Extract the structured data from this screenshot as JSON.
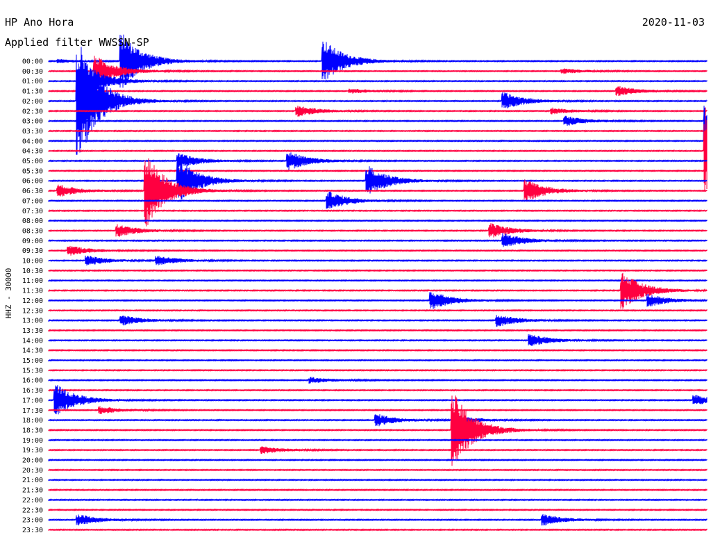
{
  "header": {
    "station_title": "HP Ano Hora",
    "filter_label": "Applied filter WWSSN-SP",
    "date": "2020-11-03"
  },
  "axis": {
    "ylabel": "HHZ - 30000"
  },
  "colors": {
    "trace_a": "#0000ff",
    "trace_b": "#ff0040",
    "background": "#ffffff",
    "text": "#000000"
  },
  "chart_data": {
    "type": "helicorder",
    "title": "HP Ano Hora",
    "subtitle": "Applied filter WWSSN-SP",
    "date": "2020-11-03",
    "ylabel": "HHZ - 30000",
    "row_interval_minutes": 30,
    "row_labels": [
      "00:00",
      "00:30",
      "01:00",
      "01:30",
      "02:00",
      "02:30",
      "03:00",
      "03:30",
      "04:00",
      "04:30",
      "05:00",
      "05:30",
      "06:00",
      "06:30",
      "07:00",
      "07:30",
      "08:00",
      "08:30",
      "09:00",
      "09:30",
      "10:00",
      "10:30",
      "11:00",
      "11:30",
      "12:00",
      "12:30",
      "13:00",
      "13:30",
      "14:00",
      "14:30",
      "15:00",
      "15:30",
      "16:00",
      "16:30",
      "17:00",
      "17:30",
      "18:00",
      "18:30",
      "19:00",
      "19:30",
      "20:00",
      "20:30",
      "21:00",
      "21:30",
      "22:00",
      "22:30",
      "23:00",
      "23:30"
    ],
    "row_colors": [
      "blue",
      "red"
    ],
    "events": [
      {
        "row": 0,
        "minute": 0.5,
        "amp": 0.3
      },
      {
        "row": 0,
        "minute": 3.4,
        "amp": 4.5
      },
      {
        "row": 0,
        "minute": 12.6,
        "amp": 3.5
      },
      {
        "row": 1,
        "minute": 2.2,
        "amp": 2.5
      },
      {
        "row": 1,
        "minute": 23.5,
        "amp": 0.4
      },
      {
        "row": 2,
        "minute": 1.8,
        "amp": 2.5
      },
      {
        "row": 3,
        "minute": 13.8,
        "amp": 0.4
      },
      {
        "row": 3,
        "minute": 26.0,
        "amp": 0.8
      },
      {
        "row": 4,
        "minute": 1.4,
        "amp": 10.0
      },
      {
        "row": 4,
        "minute": 20.8,
        "amp": 1.4
      },
      {
        "row": 5,
        "minute": 11.4,
        "amp": 0.9
      },
      {
        "row": 5,
        "minute": 23.0,
        "amp": 0.5
      },
      {
        "row": 6,
        "minute": 23.6,
        "amp": 0.8
      },
      {
        "row": 6,
        "minute": 30.0,
        "amp": 1.0
      },
      {
        "row": 8,
        "minute": 30.0,
        "amp": 6.0
      },
      {
        "row": 9,
        "minute": 30.0,
        "amp": 8.0
      },
      {
        "row": 10,
        "minute": 6.0,
        "amp": 1.2
      },
      {
        "row": 10,
        "minute": 11.0,
        "amp": 1.5
      },
      {
        "row": 12,
        "minute": 6.0,
        "amp": 3.5
      },
      {
        "row": 12,
        "minute": 14.6,
        "amp": 2.5
      },
      {
        "row": 13,
        "minute": 0.5,
        "amp": 1.0
      },
      {
        "row": 13,
        "minute": 4.5,
        "amp": 6.0
      },
      {
        "row": 13,
        "minute": 21.8,
        "amp": 1.8
      },
      {
        "row": 14,
        "minute": 12.8,
        "amp": 1.5
      },
      {
        "row": 17,
        "minute": 3.2,
        "amp": 1.0
      },
      {
        "row": 17,
        "minute": 20.2,
        "amp": 1.2
      },
      {
        "row": 18,
        "minute": 20.8,
        "amp": 1.2
      },
      {
        "row": 19,
        "minute": 1.0,
        "amp": 0.8
      },
      {
        "row": 20,
        "minute": 1.8,
        "amp": 0.8
      },
      {
        "row": 20,
        "minute": 5.0,
        "amp": 0.8
      },
      {
        "row": 23,
        "minute": 26.2,
        "amp": 3.0
      },
      {
        "row": 24,
        "minute": 17.5,
        "amp": 1.5
      },
      {
        "row": 24,
        "minute": 27.4,
        "amp": 1.0
      },
      {
        "row": 26,
        "minute": 3.4,
        "amp": 0.8
      },
      {
        "row": 26,
        "minute": 20.5,
        "amp": 1.0
      },
      {
        "row": 28,
        "minute": 22.0,
        "amp": 1.0
      },
      {
        "row": 32,
        "minute": 12.0,
        "amp": 0.5
      },
      {
        "row": 34,
        "minute": 0.4,
        "amp": 2.5
      },
      {
        "row": 34,
        "minute": 29.5,
        "amp": 0.8
      },
      {
        "row": 35,
        "minute": 2.4,
        "amp": 0.6
      },
      {
        "row": 36,
        "minute": 15.0,
        "amp": 1.0
      },
      {
        "row": 36,
        "minute": 18.5,
        "amp": 0.9
      },
      {
        "row": 37,
        "minute": 18.5,
        "amp": 6.0
      },
      {
        "row": 39,
        "minute": 9.8,
        "amp": 0.6
      },
      {
        "row": 46,
        "minute": 1.4,
        "amp": 0.9
      },
      {
        "row": 46,
        "minute": 22.6,
        "amp": 0.9
      }
    ]
  }
}
